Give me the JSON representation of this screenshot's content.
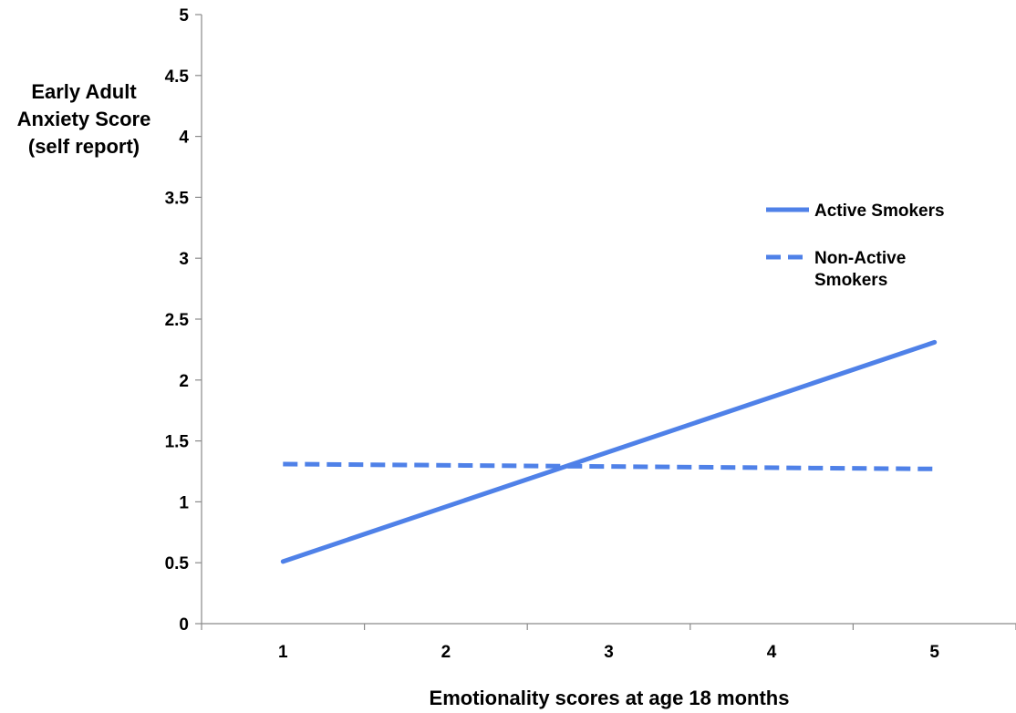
{
  "chart_data": {
    "type": "line",
    "xlabel": "Emotionality scores at age 18 months",
    "ylabel_lines": [
      "Early Adult",
      "Anxiety Score",
      "(self report)"
    ],
    "x": [
      1,
      5
    ],
    "xticks": [
      "1",
      "2",
      "3",
      "4",
      "5"
    ],
    "xlim": [
      0.5,
      5.5
    ],
    "ylim": [
      0,
      5
    ],
    "yticks": [
      "0",
      "0.5",
      "1",
      "1.5",
      "2",
      "2.5",
      "3",
      "3.5",
      "4",
      "4.5",
      "5"
    ],
    "grid": false,
    "legend_position": "right",
    "series": [
      {
        "name": "Active Smokers",
        "name_lines": [
          "Active Smokers"
        ],
        "values": [
          0.51,
          2.31
        ],
        "style": "solid",
        "color": "#4f81e8"
      },
      {
        "name": "Non-Active Smokers",
        "name_lines": [
          "Non-Active",
          "Smokers"
        ],
        "values": [
          1.31,
          1.27
        ],
        "style": "dashed",
        "color": "#4f81e8"
      }
    ]
  }
}
